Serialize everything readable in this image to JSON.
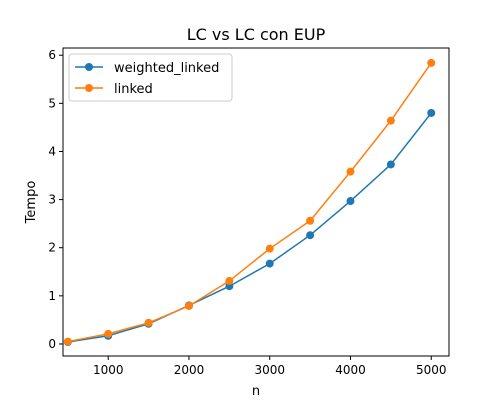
{
  "chart_data": {
    "type": "line",
    "title": "LC vs LC con EUP",
    "xlabel": "n",
    "ylabel": "Tempo",
    "xlim": [
      440,
      5220
    ],
    "ylim": [
      -0.25,
      6.15
    ],
    "xticks": [
      1000,
      2000,
      3000,
      4000,
      5000
    ],
    "yticks": [
      0,
      1,
      2,
      3,
      4,
      5,
      6
    ],
    "grid": false,
    "legend_position": "top-left",
    "x": [
      500,
      1000,
      1500,
      2000,
      2500,
      3000,
      3500,
      4000,
      4500,
      5000
    ],
    "series": [
      {
        "name": "weighted_linked",
        "color": "#1f77b4",
        "values": [
          0.04,
          0.17,
          0.42,
          0.8,
          1.2,
          1.67,
          2.26,
          2.97,
          3.73,
          4.8
        ]
      },
      {
        "name": "linked",
        "color": "#ff7f0e",
        "values": [
          0.05,
          0.21,
          0.44,
          0.79,
          1.31,
          1.98,
          2.56,
          3.58,
          4.64,
          5.84
        ]
      }
    ]
  }
}
